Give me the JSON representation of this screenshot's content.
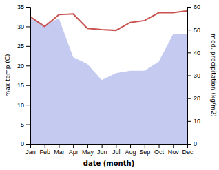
{
  "chart_data": {
    "type": "line",
    "xlabel": "date (month)",
    "ylabel": "max temp (C)",
    "y2label": "med. precipitation (kg/m2)",
    "categories": [
      "Jan",
      "Feb",
      "Mar",
      "Apr",
      "May",
      "Jun",
      "Jul",
      "Aug",
      "Sep",
      "Oct",
      "Nov",
      "Dec"
    ],
    "series": [
      {
        "type": "area",
        "axis": "y2",
        "color": "#c5caf0",
        "values": [
          55,
          52,
          55,
          38,
          35,
          28,
          31,
          32,
          32,
          36,
          48,
          48
        ]
      },
      {
        "type": "line",
        "color": "#c9514e",
        "values": [
          32.5,
          30.0,
          33.0,
          33.2,
          29.5,
          29.2,
          29.0,
          31.0,
          31.5,
          33.5,
          33.5,
          34.0
        ]
      }
    ],
    "ylim": [
      0,
      35
    ],
    "yticks": [
      0,
      5,
      10,
      15,
      20,
      25,
      30,
      35
    ],
    "y2lim": [
      0,
      60
    ],
    "y2ticks": [
      0,
      10,
      20,
      30,
      40,
      50,
      60
    ]
  }
}
